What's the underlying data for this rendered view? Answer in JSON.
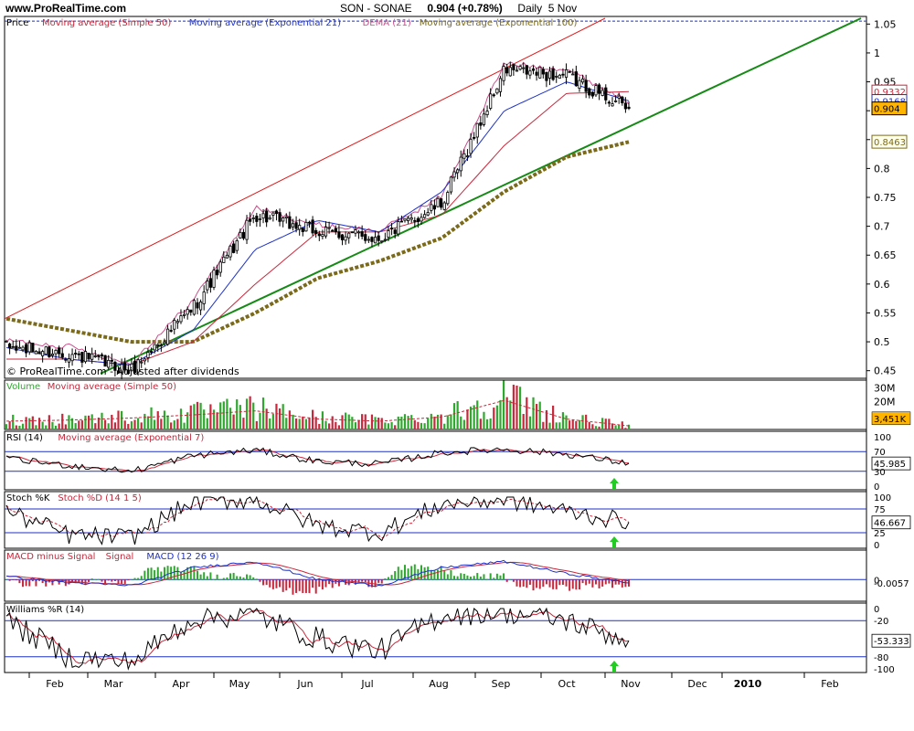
{
  "header": {
    "site": "www.ProRealTime.com",
    "symbol": "SON - SONAE",
    "price": "0.904 (+0.78%)",
    "period": "Daily",
    "date": "5 Nov"
  },
  "panels": {
    "price": {
      "legend": [
        "Price",
        "Moving average (Simple 50)",
        "Moving average (Exponential 21)",
        "DEMA (21)",
        "Moving average (Exponential 100)"
      ],
      "legend_colors": [
        "#000000",
        "#c8283c",
        "#1e32c8",
        "#c8508c",
        "#7a6a1a"
      ],
      "axis_ticks": [
        "1.05",
        "1",
        "0.95",
        "0.9",
        "0.85",
        "0.8",
        "0.75",
        "0.7",
        "0.65",
        "0.6",
        "0.55",
        "0.5",
        "0.45"
      ],
      "badges": [
        {
          "text": "0.9332",
          "color": "#c8283c",
          "bg": "#ffffff"
        },
        {
          "text": "0.9168",
          "color": "#1e32c8",
          "bg": "#ffffff"
        },
        {
          "text": "0.904",
          "color": "#000000",
          "bg": "#ffb400"
        },
        {
          "text": "0.8463",
          "color": "#7a6a1a",
          "bg": "#ffffee"
        }
      ],
      "watermark": "© ProRealTime.com - Adjusted after dividends"
    },
    "volume": {
      "legend": [
        "Volume",
        "Moving average (Simple 50)"
      ],
      "legend_colors": [
        "#2ea82e",
        "#c8283c"
      ],
      "axis_ticks": [
        "30M",
        "20M",
        "10M"
      ],
      "badge": "3,451K"
    },
    "rsi": {
      "legend": [
        "RSI (14)",
        "Moving average (Exponential 7)"
      ],
      "legend_colors": [
        "#000000",
        "#c8283c"
      ],
      "axis_ticks": [
        "100",
        "70",
        "45.985",
        "30",
        "0"
      ],
      "value": "45.985"
    },
    "stoch": {
      "legend": [
        "Stoch %K",
        "Stoch %D (14 1 5)"
      ],
      "legend_colors": [
        "#000000",
        "#c8283c"
      ],
      "axis_ticks": [
        "100",
        "75",
        "46.667",
        "25",
        "0"
      ],
      "value": "46.667"
    },
    "macd": {
      "legend": [
        "MACD minus Signal",
        "Signal",
        "MACD (12 26 9)"
      ],
      "legend_colors": [
        "#c8283c",
        "#c8283c",
        "#1e32c8"
      ],
      "axis_ticks": [
        "0",
        "-0.0057"
      ],
      "value": "-0.0057"
    },
    "williams": {
      "legend": [
        "Williams %R (14)"
      ],
      "legend_colors": [
        "#000000"
      ],
      "axis_ticks": [
        "0",
        "-20",
        "-53.333",
        "-80",
        "-100"
      ],
      "value": "-53.333"
    }
  },
  "x_axis": {
    "labels": [
      "Feb",
      "Mar",
      "Apr",
      "May",
      "Jun",
      "Jul",
      "Aug",
      "Sep",
      "Oct",
      "Nov",
      "Dec",
      "2010",
      "Feb"
    ]
  },
  "colors": {
    "up_volume": "#2ea82e",
    "down_volume": "#c8283c",
    "trend_upper": "#e01818",
    "trend_lower": "#158a15",
    "guide": "#1e32c8",
    "signal_arrow": "#22cc22"
  },
  "chart_data": [
    {
      "type": "line",
      "panel": "price",
      "x": [
        "Jan",
        "Feb",
        "Mar",
        "Apr",
        "May",
        "Jun",
        "Jul",
        "Aug",
        "Sep",
        "Oct",
        "Nov"
      ],
      "ylim": [
        0.44,
        1.06
      ],
      "series": [
        {
          "name": "Price",
          "values": [
            0.49,
            0.48,
            0.45,
            0.56,
            0.72,
            0.69,
            0.68,
            0.74,
            0.97,
            0.96,
            0.904
          ]
        },
        {
          "name": "Moving average (Simple 50)",
          "values": [
            0.47,
            0.47,
            0.46,
            0.5,
            0.6,
            0.69,
            0.69,
            0.72,
            0.84,
            0.93,
            0.933
          ]
        },
        {
          "name": "Moving average (Exponential 21)",
          "values": [
            0.49,
            0.47,
            0.46,
            0.52,
            0.66,
            0.71,
            0.69,
            0.76,
            0.9,
            0.95,
            0.917
          ]
        },
        {
          "name": "Moving average (Exponential 100)",
          "values": [
            0.54,
            0.52,
            0.5,
            0.5,
            0.55,
            0.61,
            0.64,
            0.68,
            0.76,
            0.82,
            0.846
          ]
        }
      ]
    },
    {
      "type": "bar",
      "panel": "volume",
      "x": [
        "Jan",
        "Feb",
        "Mar",
        "Apr",
        "May",
        "Jun",
        "Jul",
        "Aug",
        "Sep",
        "Oct",
        "Nov"
      ],
      "ylim": [
        0,
        33
      ],
      "series": [
        {
          "name": "Volume",
          "unit": "M",
          "values": [
            8,
            9,
            11,
            14,
            18,
            10,
            8,
            12,
            28,
            10,
            3.451
          ]
        }
      ]
    },
    {
      "type": "line",
      "panel": "rsi",
      "x": [
        "Jan",
        "Feb",
        "Mar",
        "Apr",
        "May",
        "Jun",
        "Jul",
        "Aug",
        "Sep",
        "Oct",
        "Nov"
      ],
      "ylim": [
        0,
        100
      ],
      "series": [
        {
          "name": "RSI (14)",
          "values": [
            55,
            42,
            30,
            62,
            73,
            50,
            45,
            68,
            75,
            65,
            45.985
          ]
        }
      ]
    },
    {
      "type": "line",
      "panel": "stoch",
      "x": [
        "Jan",
        "Feb",
        "Mar",
        "Apr",
        "May",
        "Jun",
        "Jul",
        "Aug",
        "Sep",
        "Oct",
        "Nov"
      ],
      "ylim": [
        0,
        100
      ],
      "series": [
        {
          "name": "Stoch %K",
          "values": [
            70,
            20,
            15,
            90,
            95,
            40,
            25,
            85,
            95,
            70,
            46.667
          ]
        }
      ]
    },
    {
      "type": "line",
      "panel": "macd",
      "x": [
        "Jan",
        "Feb",
        "Mar",
        "Apr",
        "May",
        "Jun",
        "Jul",
        "Aug",
        "Sep",
        "Oct",
        "Nov"
      ],
      "ylim": [
        -0.03,
        0.04
      ],
      "series": [
        {
          "name": "MACD (12 26 9)",
          "values": [
            0.005,
            -0.005,
            -0.01,
            0.02,
            0.03,
            0.0,
            -0.01,
            0.02,
            0.03,
            0.01,
            -0.0057
          ]
        }
      ]
    },
    {
      "type": "line",
      "panel": "williams",
      "x": [
        "Jan",
        "Feb",
        "Mar",
        "Apr",
        "May",
        "Jun",
        "Jul",
        "Aug",
        "Sep",
        "Oct",
        "Nov"
      ],
      "ylim": [
        -100,
        0
      ],
      "series": [
        {
          "name": "Williams %R (14)",
          "values": [
            -20,
            -80,
            -90,
            -15,
            -10,
            -50,
            -70,
            -10,
            -5,
            -20,
            -53.333
          ]
        }
      ]
    }
  ]
}
